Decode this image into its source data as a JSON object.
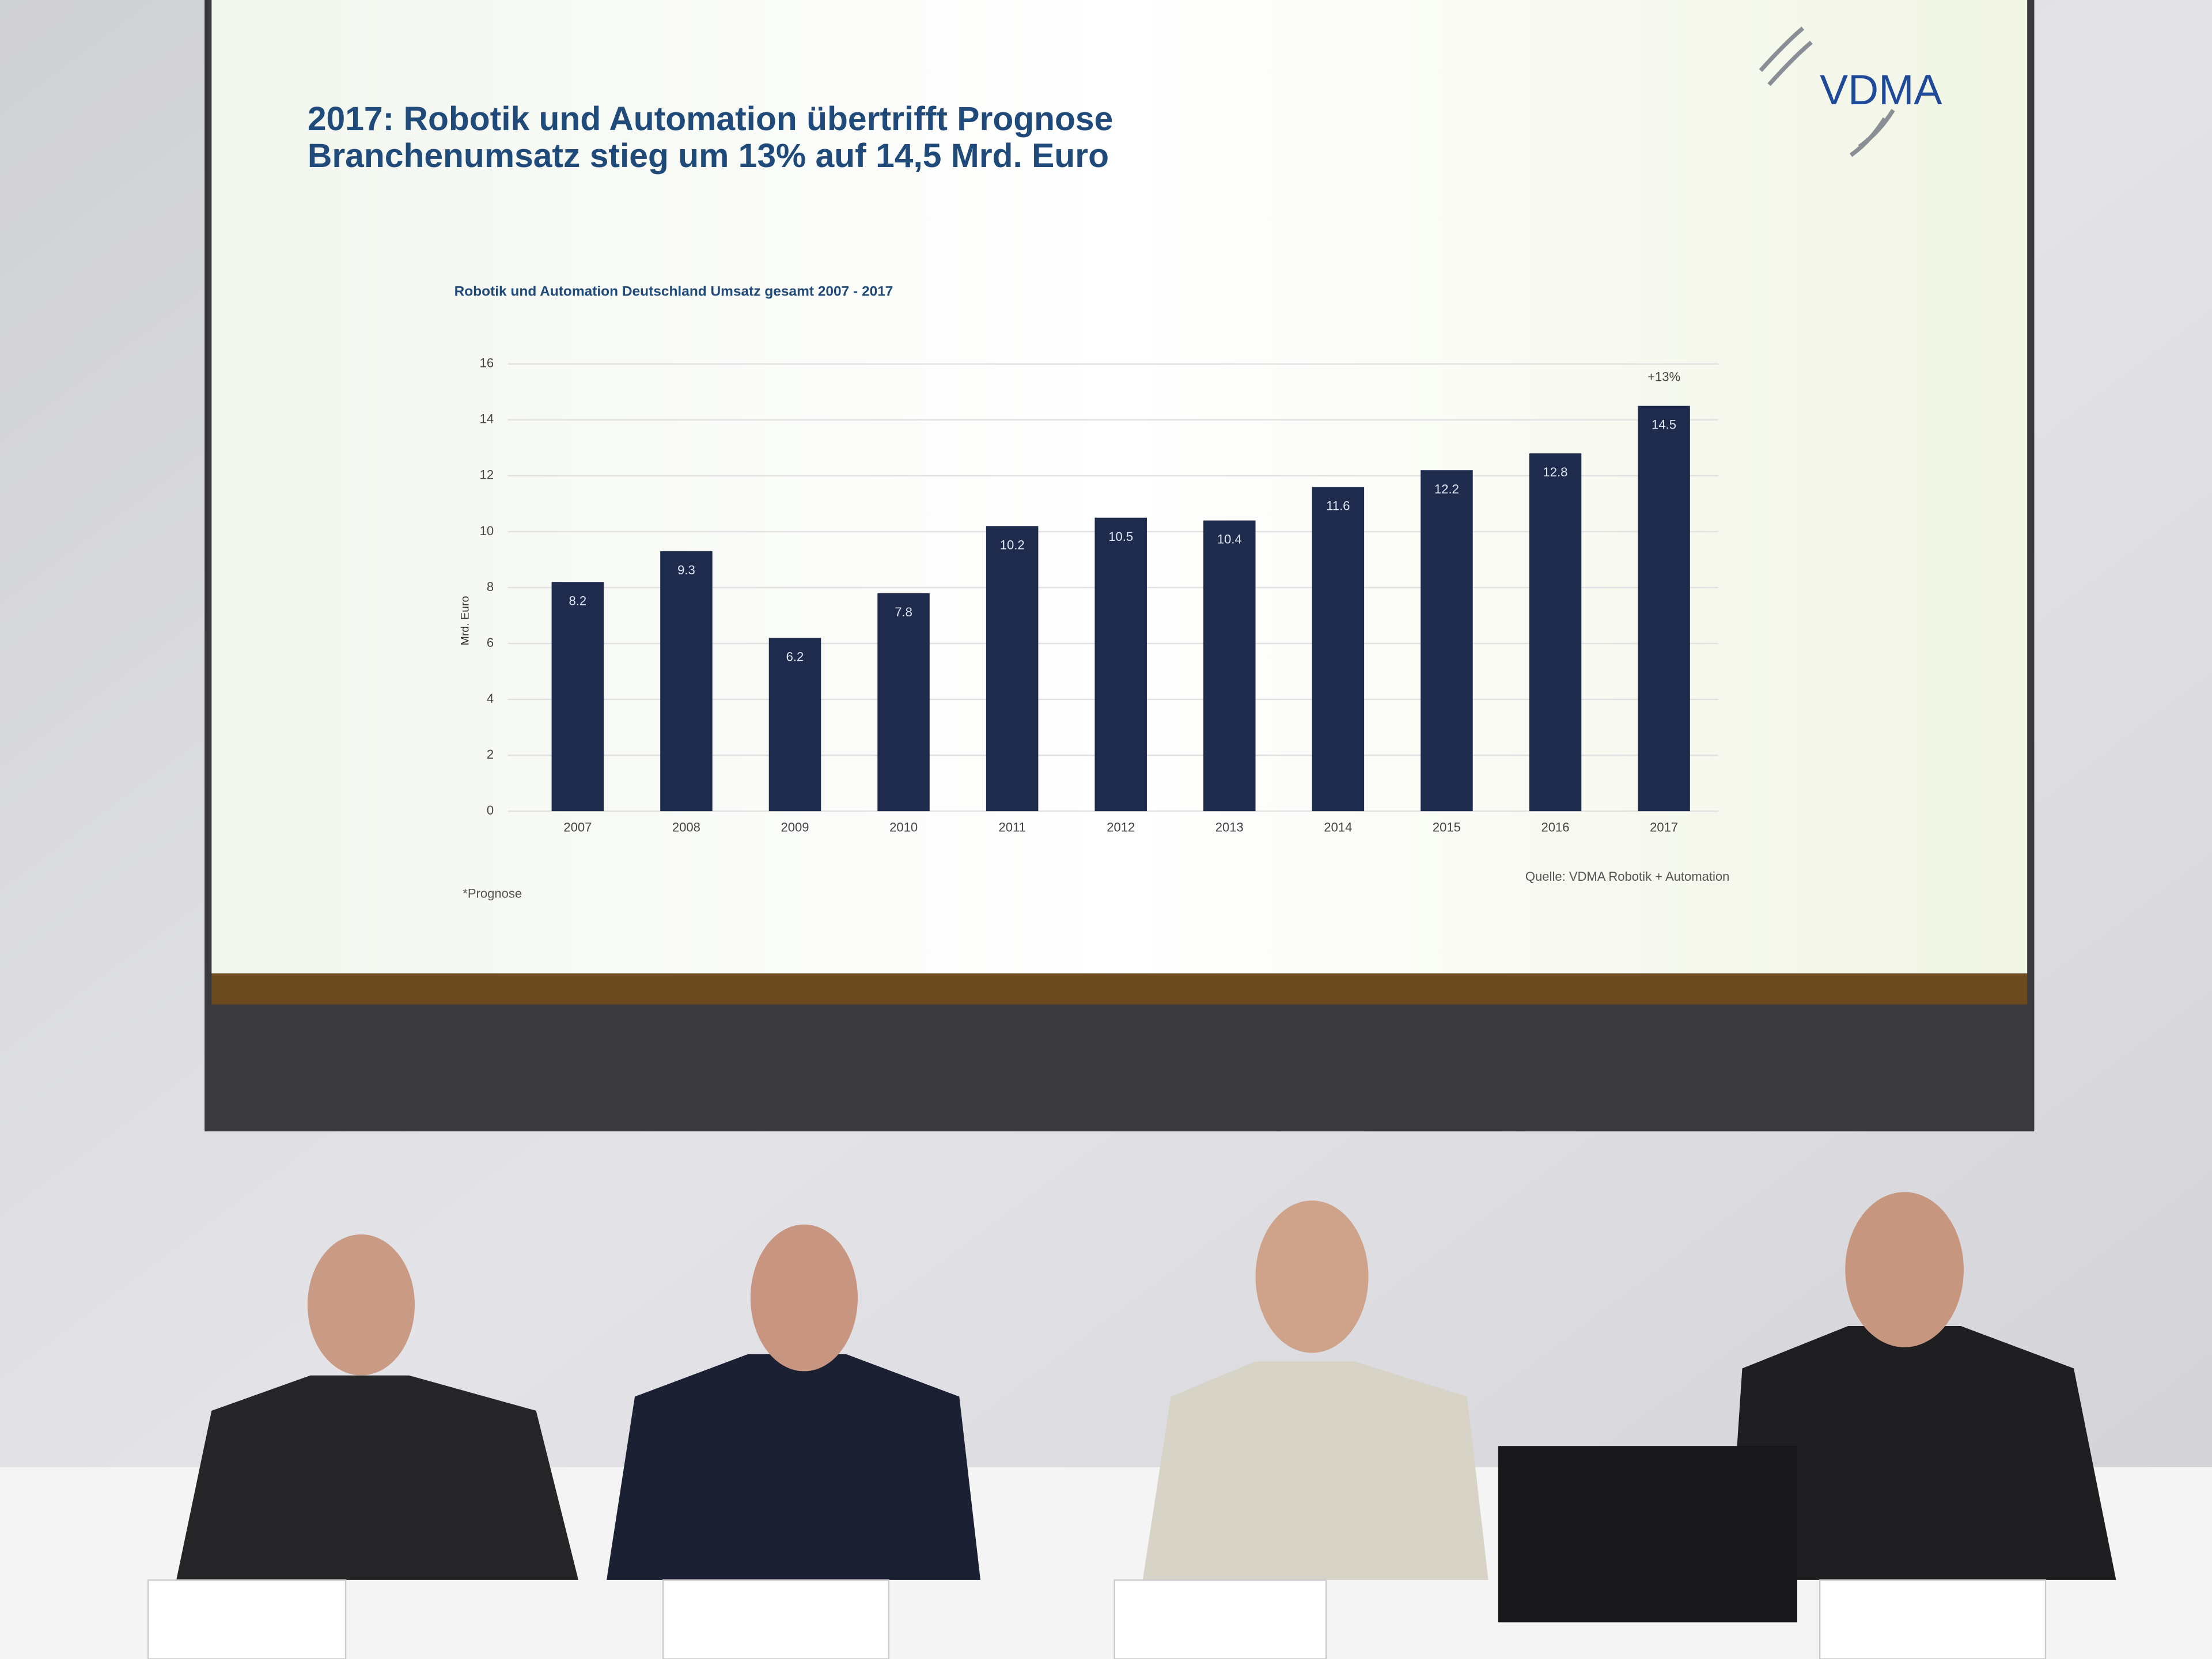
{
  "slide": {
    "title": [
      "2017: Robotik und Automation übertrifft Prognose",
      "Branchenumsatz stieg um 13% auf 14,5 Mrd. Euro"
    ],
    "logo": "VDMA"
  },
  "chart_data": {
    "type": "bar",
    "title": "Robotik und Automation Deutschland Umsatz gesamt 2007 - 2017",
    "y_label": "Mrd. Euro",
    "categories": [
      "2007",
      "2008",
      "2009",
      "2010",
      "2011",
      "2012",
      "2013",
      "2014",
      "2015",
      "2016",
      "2017"
    ],
    "values": [
      8.2,
      9.3,
      6.2,
      7.8,
      10.2,
      10.5,
      10.4,
      11.6,
      12.2,
      12.8,
      14.5
    ],
    "color": "#1e2b4d",
    "ylim": [
      0,
      16
    ],
    "yticks": [
      0,
      2,
      4,
      6,
      8,
      10,
      12,
      14,
      16
    ],
    "grid": true,
    "annotation": "+13%",
    "footnote": "*Prognose",
    "source": "Quelle: VDMA Robotik + Automation"
  }
}
